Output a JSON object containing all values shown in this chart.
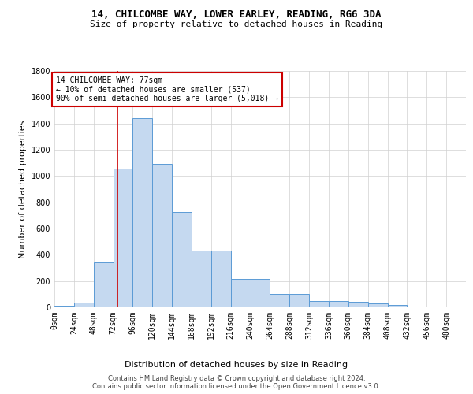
{
  "title": "14, CHILCOMBE WAY, LOWER EARLEY, READING, RG6 3DA",
  "subtitle": "Size of property relative to detached houses in Reading",
  "xlabel": "Distribution of detached houses by size in Reading",
  "ylabel": "Number of detached properties",
  "bar_values": [
    10,
    35,
    345,
    1055,
    1440,
    1090,
    725,
    430,
    430,
    215,
    215,
    100,
    100,
    50,
    50,
    40,
    30,
    20,
    5,
    5,
    5
  ],
  "bin_edges": [
    0,
    24,
    48,
    72,
    96,
    120,
    144,
    168,
    192,
    216,
    240,
    264,
    288,
    312,
    336,
    360,
    384,
    408,
    432,
    456,
    480,
    504
  ],
  "bar_color": "#c5d9f0",
  "bar_edge_color": "#5b9bd5",
  "grid_color": "#d0d0d0",
  "background_color": "#ffffff",
  "property_size": 77,
  "vline_color": "#cc0000",
  "annotation_line1": "14 CHILCOMBE WAY: 77sqm",
  "annotation_line2": "← 10% of detached houses are smaller (537)",
  "annotation_line3": "90% of semi-detached houses are larger (5,018) →",
  "annotation_box_color": "#cc0000",
  "footer_line1": "Contains HM Land Registry data © Crown copyright and database right 2024.",
  "footer_line2": "Contains public sector information licensed under the Open Government Licence v3.0.",
  "ylim": [
    0,
    1800
  ],
  "yticks": [
    0,
    200,
    400,
    600,
    800,
    1000,
    1200,
    1400,
    1600,
    1800
  ],
  "tick_labels": [
    "0sqm",
    "24sqm",
    "48sqm",
    "72sqm",
    "96sqm",
    "120sqm",
    "144sqm",
    "168sqm",
    "192sqm",
    "216sqm",
    "240sqm",
    "264sqm",
    "288sqm",
    "312sqm",
    "336sqm",
    "360sqm",
    "384sqm",
    "408sqm",
    "432sqm",
    "456sqm",
    "480sqm"
  ],
  "title_fontsize": 9,
  "subtitle_fontsize": 8,
  "ylabel_fontsize": 8,
  "xlabel_fontsize": 8,
  "tick_fontsize": 7,
  "annotation_fontsize": 7,
  "footer_fontsize": 6
}
